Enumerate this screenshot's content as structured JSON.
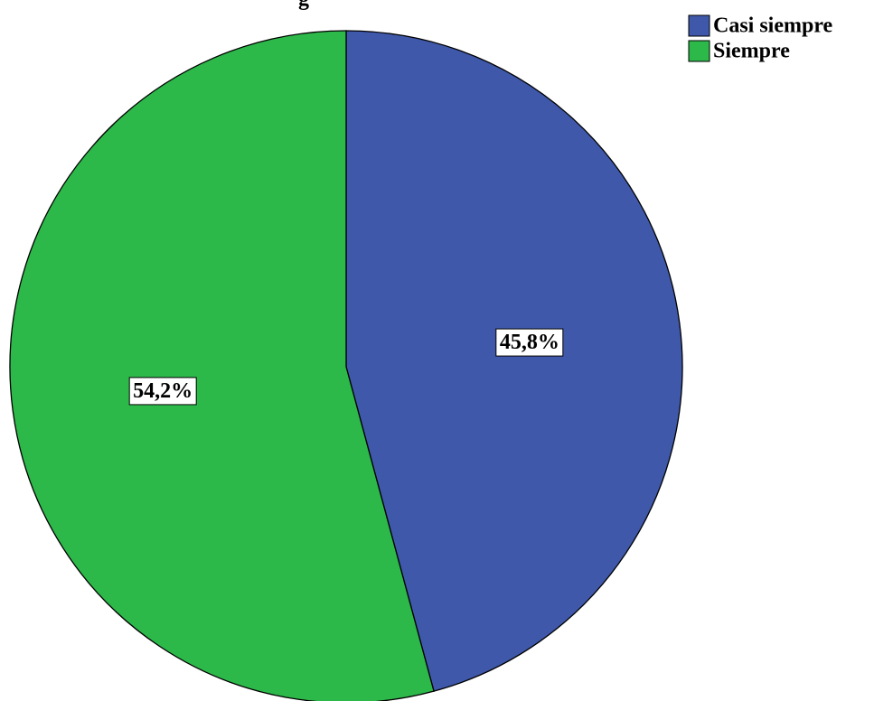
{
  "chart_data": {
    "type": "pie",
    "title_partial": "g",
    "start_angle_deg": 0,
    "direction": "clockwise",
    "slices": [
      {
        "label": "Casi siempre",
        "value": 45.8,
        "value_label": "45,8%",
        "color": "#3F58AA"
      },
      {
        "label": "Siempre",
        "value": 54.2,
        "value_label": "54,2%",
        "color": "#2DB84A"
      }
    ],
    "legend": {
      "position": "top-right",
      "entries": [
        "Casi siempre",
        "Siempre"
      ]
    },
    "outline_color": "#000000"
  }
}
